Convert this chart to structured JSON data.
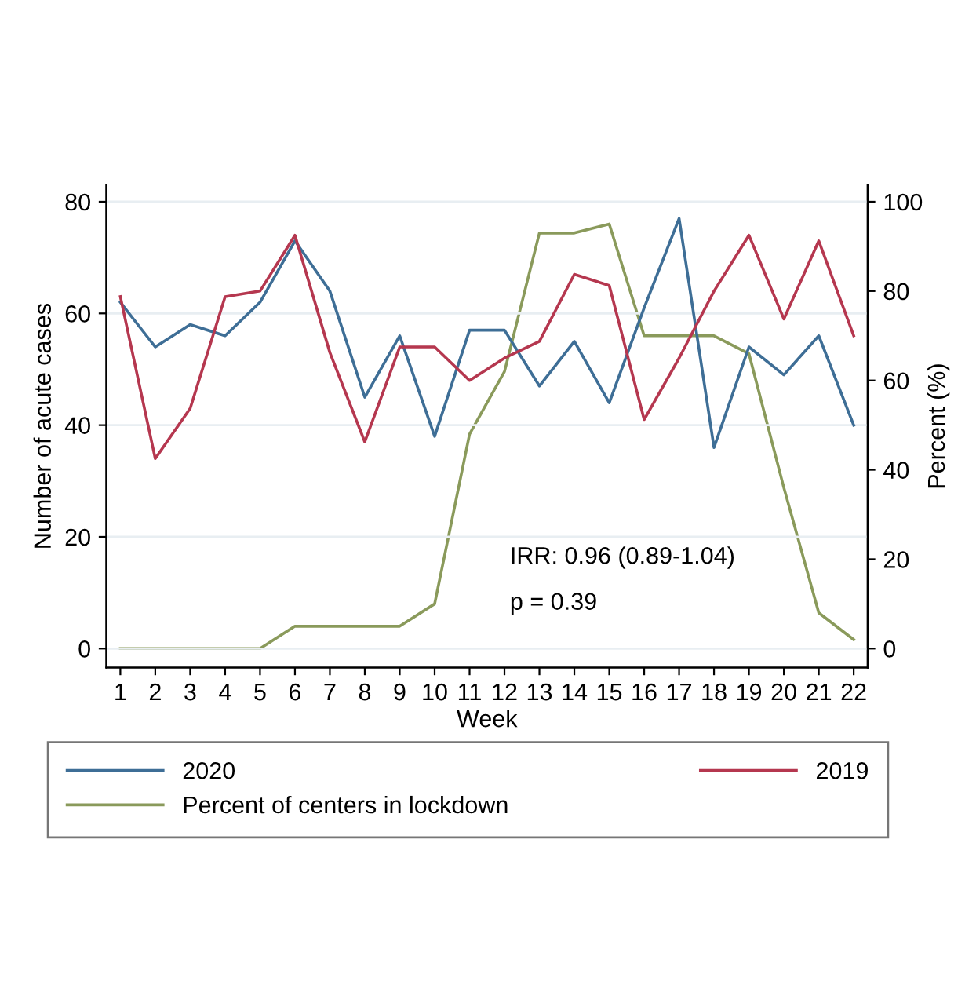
{
  "chart_data": {
    "type": "line",
    "xlabel": "Week",
    "ylabel": "Number of acute cases",
    "y2label": "Percent (%)",
    "x": [
      1,
      2,
      3,
      4,
      5,
      6,
      7,
      8,
      9,
      10,
      11,
      12,
      13,
      14,
      15,
      16,
      17,
      18,
      19,
      20,
      21,
      22
    ],
    "series": [
      {
        "name": "2020",
        "color": "#3e6e96",
        "values": [
          62,
          54,
          58,
          56,
          62,
          73,
          64,
          45,
          56,
          38,
          57,
          57,
          47,
          55,
          44,
          61,
          77,
          36,
          54,
          49,
          56,
          40
        ]
      },
      {
        "name": "2019",
        "color": "#b5374f",
        "values": [
          63,
          34,
          43,
          63,
          64,
          74,
          53,
          37,
          54,
          54,
          48,
          52,
          55,
          67,
          65,
          41,
          52,
          64,
          74,
          59,
          73,
          56
        ]
      },
      {
        "name": "Percent of centers in lockdown",
        "color": "#8a9a5b",
        "axis": "y2",
        "values": [
          0,
          0,
          0,
          0,
          0,
          5,
          5,
          5,
          5,
          10,
          48,
          62,
          93,
          93,
          95,
          70,
          70,
          70,
          66,
          36,
          8,
          2
        ]
      }
    ],
    "xlim": [
      0.6,
      22.4
    ],
    "xticks": [
      1,
      2,
      3,
      4,
      5,
      6,
      7,
      8,
      9,
      10,
      11,
      12,
      13,
      14,
      15,
      16,
      17,
      18,
      19,
      20,
      21,
      22
    ],
    "ylim": [
      -3.4,
      83
    ],
    "yticks": [
      0,
      20,
      40,
      60,
      80
    ],
    "y2lim": [
      -4.25,
      103.75
    ],
    "y2ticks": [
      0,
      20,
      40,
      60,
      80,
      100
    ],
    "grid": "y",
    "legend": "bottom",
    "marker": "none",
    "line_style": "solid",
    "annotations": [
      "IRR: 0.96 (0.89-1.04)",
      "p = 0.39"
    ]
  }
}
